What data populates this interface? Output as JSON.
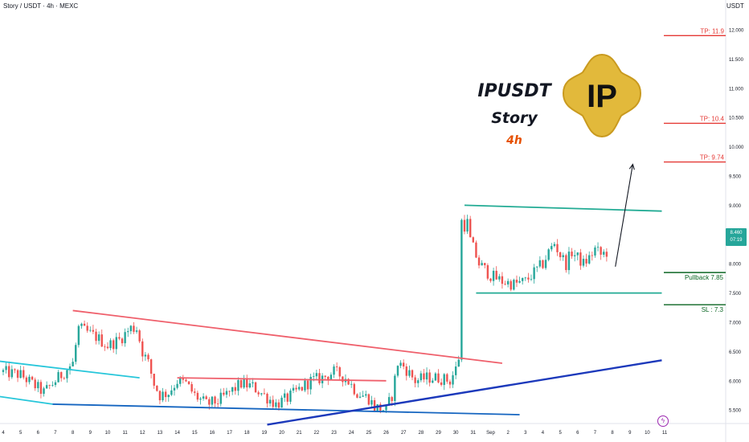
{
  "header": {
    "symbol_line": "Story / USDT · 4h · MEXC",
    "currency": "USDT"
  },
  "title_block": {
    "ticker": "IPUSDT",
    "name": "Story",
    "timeframe": "4h"
  },
  "logo": {
    "text": "IP",
    "fill": "#e2b93b",
    "text_color": "#111111"
  },
  "price_tag": {
    "price": "8.460",
    "countdown": "07:19"
  },
  "colors": {
    "up": "#26a69a",
    "down": "#ef5350",
    "target": "#e53935",
    "channel": "#22ab94",
    "stop": "#0b6623",
    "resistance": "#ef5f6b",
    "support_blue": "#1565c0",
    "cyan": "#26c6da",
    "trend_dark_blue": "#1c39bb",
    "grid": "#f0f3fa",
    "axis_text": "#131722",
    "event_icon": "#9c27b0"
  },
  "icons": [
    "event-lightning-icon"
  ],
  "chart_data": {
    "type": "candlestick",
    "title": "",
    "xlabel": "",
    "ylabel": "",
    "ylim": [
      5.25,
      12.25
    ],
    "grid": false,
    "y_ticks": [
      "12.000",
      "11.500",
      "11.000",
      "10.500",
      "10.000",
      "9.500",
      "9.000",
      "8.500",
      "8.000",
      "7.500",
      "7.000",
      "6.500",
      "6.000",
      "5.500"
    ],
    "x_ticks": [
      {
        "label": "4",
        "t": 0
      },
      {
        "label": "5",
        "t": 6
      },
      {
        "label": "6",
        "t": 12
      },
      {
        "label": "7",
        "t": 18
      },
      {
        "label": "8",
        "t": 24
      },
      {
        "label": "9",
        "t": 30
      },
      {
        "label": "10",
        "t": 36
      },
      {
        "label": "11",
        "t": 42
      },
      {
        "label": "12",
        "t": 48
      },
      {
        "label": "13",
        "t": 54
      },
      {
        "label": "14",
        "t": 60
      },
      {
        "label": "15",
        "t": 66
      },
      {
        "label": "16",
        "t": 72
      },
      {
        "label": "17",
        "t": 78
      },
      {
        "label": "18",
        "t": 84
      },
      {
        "label": "19",
        "t": 90
      },
      {
        "label": "20",
        "t": 96
      },
      {
        "label": "21",
        "t": 102
      },
      {
        "label": "22",
        "t": 108
      },
      {
        "label": "23",
        "t": 114
      },
      {
        "label": "24",
        "t": 120
      },
      {
        "label": "25",
        "t": 126
      },
      {
        "label": "26",
        "t": 132
      },
      {
        "label": "27",
        "t": 138
      },
      {
        "label": "28",
        "t": 144
      },
      {
        "label": "29",
        "t": 150
      },
      {
        "label": "30",
        "t": 156
      },
      {
        "label": "31",
        "t": 162
      },
      {
        "label": "Sep",
        "t": 168
      },
      {
        "label": "2",
        "t": 174
      },
      {
        "label": "3",
        "t": 180
      },
      {
        "label": "4",
        "t": 186
      },
      {
        "label": "5",
        "t": 192
      },
      {
        "label": "6",
        "t": 198
      },
      {
        "label": "7",
        "t": 204
      },
      {
        "label": "8",
        "t": 210
      },
      {
        "label": "9",
        "t": 216
      },
      {
        "label": "10",
        "t": 222
      },
      {
        "label": "11",
        "t": 228
      }
    ],
    "close_anchors": [
      [
        0,
        6.15
      ],
      [
        6,
        6.1
      ],
      [
        10,
        5.95
      ],
      [
        14,
        5.8
      ],
      [
        18,
        6.0
      ],
      [
        22,
        6.2
      ],
      [
        24,
        6.3
      ],
      [
        26,
        6.9
      ],
      [
        28,
        6.85
      ],
      [
        32,
        6.75
      ],
      [
        36,
        6.6
      ],
      [
        40,
        6.7
      ],
      [
        44,
        6.9
      ],
      [
        46,
        6.9
      ],
      [
        48,
        6.5
      ],
      [
        50,
        6.3
      ],
      [
        52,
        5.95
      ],
      [
        54,
        5.75
      ],
      [
        57,
        5.8
      ],
      [
        60,
        6.0
      ],
      [
        63,
        5.95
      ],
      [
        66,
        5.75
      ],
      [
        70,
        5.6
      ],
      [
        74,
        5.65
      ],
      [
        78,
        5.8
      ],
      [
        82,
        5.95
      ],
      [
        86,
        5.9
      ],
      [
        90,
        5.75
      ],
      [
        94,
        5.6
      ],
      [
        98,
        5.7
      ],
      [
        102,
        5.85
      ],
      [
        106,
        6.0
      ],
      [
        110,
        6.05
      ],
      [
        114,
        6.15
      ],
      [
        118,
        6.05
      ],
      [
        122,
        5.8
      ],
      [
        126,
        5.7
      ],
      [
        128,
        5.55
      ],
      [
        132,
        5.5
      ],
      [
        134,
        5.75
      ],
      [
        136,
        6.3
      ],
      [
        138,
        6.25
      ],
      [
        142,
        6.0
      ],
      [
        146,
        6.05
      ],
      [
        150,
        6.05
      ],
      [
        154,
        6.0
      ],
      [
        156,
        6.2
      ],
      [
        158,
        6.6
      ],
      [
        159,
        8.3
      ],
      [
        160,
        8.7
      ],
      [
        161,
        8.4
      ],
      [
        164,
        8.0
      ],
      [
        168,
        7.8
      ],
      [
        172,
        7.7
      ],
      [
        176,
        7.65
      ],
      [
        180,
        7.7
      ],
      [
        184,
        7.9
      ],
      [
        186,
        8.0
      ],
      [
        188,
        8.2
      ],
      [
        190,
        8.35
      ],
      [
        192,
        8.15
      ],
      [
        194,
        8.0
      ],
      [
        196,
        8.2
      ],
      [
        198,
        8.1
      ],
      [
        200,
        8.0
      ],
      [
        202,
        8.1
      ],
      [
        204,
        8.25
      ],
      [
        206,
        8.15
      ],
      [
        208,
        8.2
      ],
      [
        209,
        8.46
      ]
    ],
    "levels": [
      {
        "name": "tp3",
        "label": "TP: 11.9",
        "value": 11.9
      },
      {
        "name": "tp2",
        "label": "TP: 10.4",
        "value": 10.4
      },
      {
        "name": "tp1",
        "label": "TP: 9.74",
        "value": 9.74
      },
      {
        "name": "pullback",
        "label": "Pullback 7.85",
        "value": 7.85
      },
      {
        "name": "sl",
        "label": "SL : 7.3",
        "value": 7.3
      }
    ],
    "lines": [
      {
        "name": "resistance-line-upper",
        "color": "resistance",
        "t1": 24,
        "v1": 7.2,
        "t2": 172,
        "v2": 6.3
      },
      {
        "name": "resistance-line-lower",
        "color": "resistance",
        "t1": 60,
        "v1": 6.05,
        "t2": 132,
        "v2": 6.0
      },
      {
        "name": "channel-top-line",
        "color": "channel",
        "t1": 159,
        "v1": 9.0,
        "t2": 227,
        "v2": 8.9
      },
      {
        "name": "channel-bottom-line",
        "color": "channel",
        "t1": 163,
        "v1": 7.5,
        "t2": 227,
        "v2": 7.5
      },
      {
        "name": "support-blue-line",
        "color": "support_blue",
        "t1": 17,
        "v1": 5.6,
        "t2": 178,
        "v2": 5.42
      },
      {
        "name": "cyan-line-upper",
        "color": "cyan",
        "t1": -4,
        "v1": 6.35,
        "t2": 47,
        "v2": 6.05
      },
      {
        "name": "cyan-line-lower",
        "color": "cyan",
        "t1": -4,
        "v1": 5.75,
        "t2": 17,
        "v2": 5.6
      },
      {
        "name": "trend-line-blue",
        "color": "trend_dark_blue",
        "t1": 91,
        "v1": 5.25,
        "t2": 227,
        "v2": 6.35
      }
    ],
    "projection": {
      "label": "projection-arrow",
      "t1": 211,
      "v1": 7.95,
      "t2": 217,
      "v2": 9.7
    }
  }
}
